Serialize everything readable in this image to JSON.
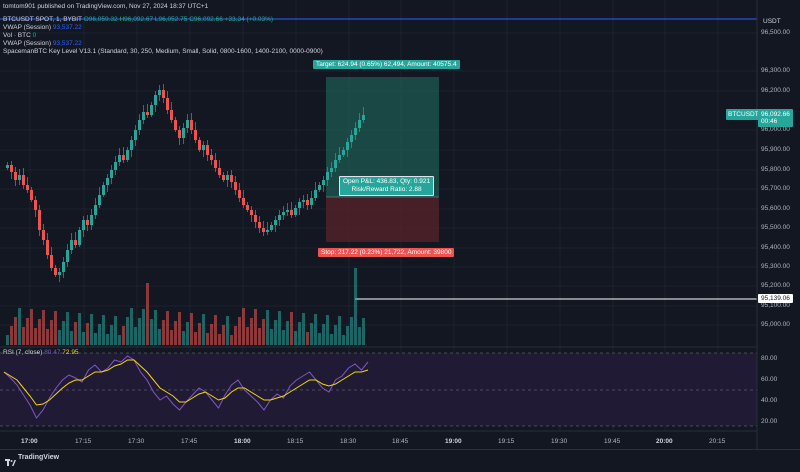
{
  "header": {
    "published": "tomtom901 published on TradingView.com, Nov 27, 2024 18:37 UTC+1",
    "symbol": "BTCUSDT SPOT, 1, BYBIT",
    "ohlc": "O96,059.32 H96,092.67 L96,052.75 C96,092.66 +33.34 (+0.03%)",
    "ind1_name": "VWAP (Session)",
    "ind1_val": "93,537.22",
    "ind2_name": "Vol · BTC",
    "ind2_val": "0",
    "ind3_name": "VWAP (Session)",
    "ind3_val": "93,537.22",
    "ind4_name": "SpacemanBTC Key Level V13.1 (Standard, 30, 250, Medium, Small, Solid, 0800-1600, 1400-2100, 0000-0900)"
  },
  "price_axis": {
    "currency": "USDT",
    "labels": [
      "96,500.00",
      "96,300.00",
      "96,200.00",
      "96,000.00",
      "95,900.00",
      "95,800.00",
      "95,700.00",
      "95,600.00",
      "95,500.00",
      "95,400.00",
      "95,300.00",
      "95,200.00",
      "95,100.00",
      "95,000.00"
    ],
    "current_symbol": "BTCUSDT",
    "current_price": "96,092.66",
    "countdown": "00:46",
    "level_price": "95,139.06"
  },
  "position": {
    "target_text": "Target: 624.94 (0.65%) 62,494, Amount: 40575.4",
    "open_pl_text": "Open P&L: 436.83, Qty: 0.921",
    "risk_reward_text": "Risk/Reward Ratio: 2.88",
    "stop_text": "Stop: 217.22 (0.23%) 21,722, Amount: 39800"
  },
  "rsi": {
    "label": "RSI (7, close)",
    "val1": "80.47",
    "val2": "72.95",
    "axis": [
      "80.00",
      "60.00",
      "40.00",
      "20.00"
    ]
  },
  "time_axis": [
    "17:00",
    "17:15",
    "17:30",
    "17:45",
    "18:00",
    "18:15",
    "18:30",
    "18:45",
    "19:00",
    "19:15",
    "19:30",
    "19:45",
    "20:00",
    "20:15"
  ],
  "footer": {
    "brand": "TradingView"
  },
  "colors": {
    "up": "#26a69a",
    "down": "#ef5350",
    "background": "#131722",
    "accent": "#2962ff",
    "rsi_line": "#7e57c2",
    "rsi_ma": "#f5d70a"
  }
}
